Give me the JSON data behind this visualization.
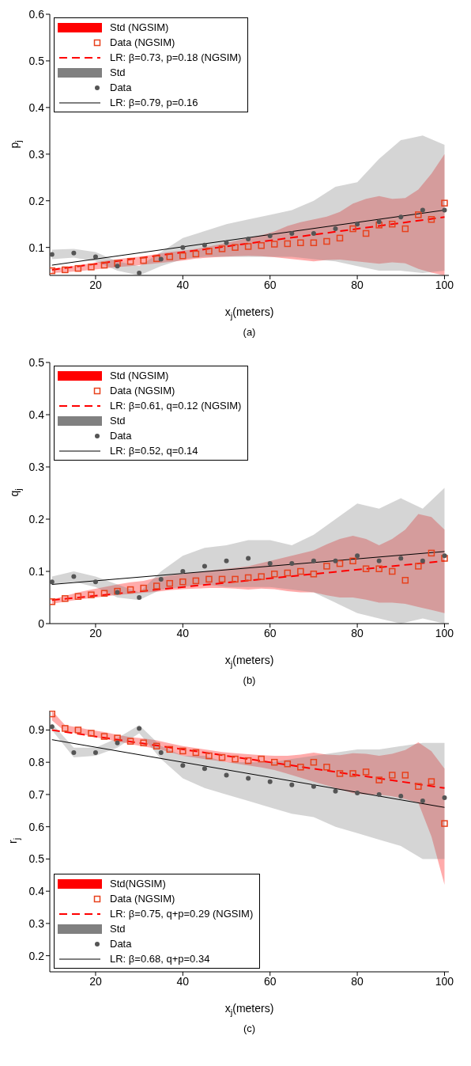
{
  "chart_data": [
    {
      "type": "scatter",
      "xlabel": "x$_{j}$(meters)",
      "ylabel": "p$_{j}$",
      "annotations": [
        "(a)"
      ],
      "xlim": [
        9.5,
        101
      ],
      "ylim": [
        0.04,
        0.6
      ],
      "xticks": [
        20,
        40,
        60,
        80,
        100
      ],
      "yticks": [
        0.1,
        0.2,
        0.3,
        0.4,
        0.5,
        0.6
      ],
      "legend": "top left",
      "series": [
        {
          "type": "area",
          "name": "Std (NGSIM)",
          "color": "#ff0000"
        },
        {
          "type": "scatter",
          "name": "Data (NGSIM)",
          "color": "#e8411c",
          "marker": "square",
          "x": [
            10,
            13,
            16,
            19,
            22,
            25,
            28,
            31,
            34,
            37,
            40,
            43,
            46,
            49,
            52,
            55,
            58,
            61,
            64,
            67,
            70,
            73,
            76,
            79,
            82,
            85,
            88,
            91,
            94,
            97,
            100
          ],
          "values": [
            0.05,
            0.052,
            0.055,
            0.058,
            0.062,
            0.066,
            0.07,
            0.072,
            0.076,
            0.08,
            0.082,
            0.086,
            0.092,
            0.097,
            0.1,
            0.102,
            0.104,
            0.107,
            0.108,
            0.11,
            0.11,
            0.113,
            0.12,
            0.14,
            0.13,
            0.148,
            0.15,
            0.14,
            0.17,
            0.16,
            0.195
          ],
          "lower": [
            0.045,
            0.047,
            0.049,
            0.052,
            0.055,
            0.058,
            0.06,
            0.063,
            0.066,
            0.069,
            0.072,
            0.076,
            0.078,
            0.08,
            0.081,
            0.082,
            0.081,
            0.079,
            0.076,
            0.073,
            0.07,
            0.073,
            0.074,
            0.071,
            0.068,
            0.065,
            0.068,
            0.066,
            0.054,
            0.046,
            0.04
          ],
          "upper": [
            0.055,
            0.058,
            0.062,
            0.066,
            0.071,
            0.075,
            0.078,
            0.081,
            0.086,
            0.09,
            0.093,
            0.097,
            0.102,
            0.108,
            0.114,
            0.12,
            0.126,
            0.134,
            0.146,
            0.154,
            0.16,
            0.166,
            0.176,
            0.194,
            0.204,
            0.21,
            0.204,
            0.206,
            0.224,
            0.258,
            0.3
          ]
        },
        {
          "type": "line",
          "name": "LR: β=0.73, p=0.18 (NGSIM)",
          "color": "#ff0000",
          "line_style": "dashed",
          "x": [
            10,
            100
          ],
          "values": [
            0.052,
            0.165
          ]
        },
        {
          "type": "area",
          "name": "Std",
          "color": "#808080"
        },
        {
          "type": "scatter",
          "name": "Data",
          "color": "#555555",
          "marker": "circle",
          "x": [
            10,
            15,
            20,
            25,
            30,
            35,
            40,
            45,
            50,
            55,
            60,
            65,
            70,
            75,
            80,
            85,
            90,
            95,
            100
          ],
          "values": [
            0.085,
            0.088,
            0.08,
            0.06,
            0.045,
            0.075,
            0.1,
            0.105,
            0.11,
            0.118,
            0.125,
            0.13,
            0.13,
            0.14,
            0.15,
            0.155,
            0.165,
            0.18,
            0.18
          ],
          "lower": [
            0.075,
            0.078,
            0.07,
            0.05,
            0.04,
            0.06,
            0.075,
            0.08,
            0.08,
            0.08,
            0.08,
            0.08,
            0.075,
            0.07,
            0.06,
            0.05,
            0.05,
            0.045,
            0.05
          ],
          "upper": [
            0.095,
            0.097,
            0.09,
            0.07,
            0.06,
            0.09,
            0.12,
            0.135,
            0.15,
            0.16,
            0.17,
            0.18,
            0.2,
            0.23,
            0.24,
            0.29,
            0.33,
            0.34,
            0.32
          ]
        },
        {
          "type": "line",
          "name": "LR: β=0.79, p=0.16",
          "color": "#000000",
          "line_style": "solid",
          "x": [
            10,
            100
          ],
          "values": [
            0.062,
            0.18
          ]
        }
      ]
    },
    {
      "type": "scatter",
      "xlabel": "x$_{j}$(meters)",
      "ylabel": "q$_{j}$",
      "annotations": [
        "(b)"
      ],
      "xlim": [
        9.5,
        101
      ],
      "ylim": [
        0,
        0.5
      ],
      "xticks": [
        20,
        40,
        60,
        80,
        100
      ],
      "yticks": [
        0,
        0.1,
        0.2,
        0.3,
        0.4,
        0.5
      ],
      "legend": "top left",
      "series": [
        {
          "type": "area",
          "name": "Std (NGSIM)",
          "color": "#ff0000"
        },
        {
          "type": "scatter",
          "name": "Data (NGSIM)",
          "color": "#e8411c",
          "marker": "square",
          "x": [
            10,
            13,
            16,
            19,
            22,
            25,
            28,
            31,
            34,
            37,
            40,
            43,
            46,
            49,
            52,
            55,
            58,
            61,
            64,
            67,
            70,
            73,
            76,
            79,
            82,
            85,
            88,
            91,
            94,
            97,
            100
          ],
          "values": [
            0.042,
            0.048,
            0.052,
            0.055,
            0.058,
            0.062,
            0.065,
            0.068,
            0.072,
            0.077,
            0.08,
            0.082,
            0.085,
            0.085,
            0.085,
            0.088,
            0.09,
            0.095,
            0.097,
            0.1,
            0.095,
            0.11,
            0.115,
            0.12,
            0.105,
            0.105,
            0.1,
            0.083,
            0.11,
            0.135,
            0.125
          ],
          "lower": [
            0.038,
            0.042,
            0.046,
            0.049,
            0.052,
            0.055,
            0.057,
            0.059,
            0.061,
            0.064,
            0.066,
            0.067,
            0.068,
            0.068,
            0.067,
            0.065,
            0.067,
            0.066,
            0.062,
            0.06,
            0.06,
            0.054,
            0.05,
            0.05,
            0.046,
            0.04,
            0.04,
            0.038,
            0.032,
            0.026,
            0.02
          ],
          "upper": [
            0.046,
            0.053,
            0.06,
            0.065,
            0.07,
            0.075,
            0.079,
            0.082,
            0.088,
            0.092,
            0.095,
            0.098,
            0.101,
            0.104,
            0.107,
            0.11,
            0.116,
            0.122,
            0.128,
            0.134,
            0.14,
            0.152,
            0.162,
            0.168,
            0.162,
            0.15,
            0.162,
            0.18,
            0.21,
            0.204,
            0.18
          ]
        },
        {
          "type": "line",
          "name": "LR: β=0.61, q=0.12 (NGSIM)",
          "color": "#ff0000",
          "line_style": "dashed",
          "x": [
            10,
            100
          ],
          "values": [
            0.045,
            0.12
          ]
        },
        {
          "type": "area",
          "name": "Std",
          "color": "#808080"
        },
        {
          "type": "scatter",
          "name": "Data",
          "color": "#555555",
          "marker": "circle",
          "x": [
            10,
            15,
            20,
            25,
            30,
            35,
            40,
            45,
            50,
            55,
            60,
            65,
            70,
            75,
            80,
            85,
            90,
            95,
            100
          ],
          "values": [
            0.08,
            0.09,
            0.08,
            0.06,
            0.05,
            0.085,
            0.1,
            0.11,
            0.12,
            0.125,
            0.115,
            0.115,
            0.12,
            0.12,
            0.13,
            0.12,
            0.125,
            0.12,
            0.13
          ],
          "lower": [
            0.075,
            0.08,
            0.07,
            0.05,
            0.045,
            0.065,
            0.07,
            0.075,
            0.07,
            0.07,
            0.07,
            0.065,
            0.06,
            0.04,
            0.02,
            0.01,
            0,
            0.01,
            0
          ],
          "upper": [
            0.09,
            0.1,
            0.09,
            0.075,
            0.06,
            0.1,
            0.13,
            0.145,
            0.15,
            0.16,
            0.16,
            0.15,
            0.17,
            0.2,
            0.23,
            0.22,
            0.24,
            0.22,
            0.26
          ]
        },
        {
          "type": "line",
          "name": "LR: β=0.52, q=0.14",
          "color": "#000000",
          "line_style": "solid",
          "x": [
            10,
            100
          ],
          "values": [
            0.075,
            0.138
          ]
        }
      ]
    },
    {
      "type": "scatter",
      "xlabel": "x$_{j}$(meters)",
      "ylabel": "r$_{j}$",
      "annotations": [
        "(c)"
      ],
      "xlim": [
        9.5,
        101
      ],
      "ylim": [
        0.15,
        0.96
      ],
      "xticks": [
        20,
        40,
        60,
        80,
        100
      ],
      "yticks": [
        0.2,
        0.3,
        0.4,
        0.5,
        0.6,
        0.7,
        0.8,
        0.9
      ],
      "legend": "bottom left",
      "series": [
        {
          "type": "area",
          "name": "Std(NGSIM)",
          "color": "#ff0000"
        },
        {
          "type": "scatter",
          "name": "Data (NGSIM)",
          "color": "#e8411c",
          "marker": "square",
          "x": [
            10,
            13,
            16,
            19,
            22,
            25,
            28,
            31,
            34,
            37,
            40,
            43,
            46,
            49,
            52,
            55,
            58,
            61,
            64,
            67,
            70,
            73,
            76,
            79,
            82,
            85,
            88,
            91,
            94,
            97,
            100
          ],
          "values": [
            0.95,
            0.905,
            0.9,
            0.89,
            0.88,
            0.875,
            0.865,
            0.86,
            0.85,
            0.84,
            0.835,
            0.83,
            0.82,
            0.815,
            0.81,
            0.805,
            0.81,
            0.8,
            0.795,
            0.785,
            0.8,
            0.785,
            0.765,
            0.765,
            0.77,
            0.745,
            0.76,
            0.76,
            0.725,
            0.74,
            0.61
          ],
          "lower": [
            0.93,
            0.895,
            0.89,
            0.88,
            0.872,
            0.865,
            0.856,
            0.849,
            0.842,
            0.832,
            0.82,
            0.814,
            0.808,
            0.802,
            0.796,
            0.79,
            0.784,
            0.776,
            0.764,
            0.752,
            0.74,
            0.728,
            0.716,
            0.704,
            0.7,
            0.7,
            0.694,
            0.686,
            0.674,
            0.57,
            0.42
          ],
          "upper": [
            0.96,
            0.915,
            0.908,
            0.9,
            0.894,
            0.885,
            0.878,
            0.874,
            0.868,
            0.859,
            0.85,
            0.844,
            0.838,
            0.832,
            0.828,
            0.825,
            0.822,
            0.82,
            0.82,
            0.824,
            0.83,
            0.824,
            0.822,
            0.828,
            0.826,
            0.82,
            0.826,
            0.838,
            0.862,
            0.834,
            0.78
          ]
        },
        {
          "type": "line",
          "name": "LR: β=0.75, q+p=0.29 (NGSIM)",
          "color": "#ff0000",
          "line_style": "dashed",
          "x": [
            10,
            100
          ],
          "values": [
            0.9,
            0.72
          ]
        },
        {
          "type": "area",
          "name": "Std",
          "color": "#808080"
        },
        {
          "type": "scatter",
          "name": "Data",
          "color": "#555555",
          "marker": "circle",
          "x": [
            10,
            15,
            20,
            25,
            30,
            35,
            40,
            45,
            50,
            55,
            60,
            65,
            70,
            75,
            80,
            85,
            90,
            95,
            100
          ],
          "values": [
            0.91,
            0.83,
            0.83,
            0.86,
            0.905,
            0.83,
            0.79,
            0.78,
            0.76,
            0.75,
            0.74,
            0.73,
            0.725,
            0.71,
            0.705,
            0.7,
            0.695,
            0.68,
            0.69
          ],
          "lower": [
            0.9,
            0.815,
            0.82,
            0.845,
            0.89,
            0.81,
            0.75,
            0.72,
            0.7,
            0.68,
            0.66,
            0.64,
            0.63,
            0.6,
            0.58,
            0.56,
            0.54,
            0.5,
            0.5
          ],
          "upper": [
            0.92,
            0.845,
            0.845,
            0.875,
            0.915,
            0.85,
            0.82,
            0.82,
            0.8,
            0.8,
            0.8,
            0.81,
            0.82,
            0.83,
            0.84,
            0.84,
            0.85,
            0.86,
            0.86
          ]
        },
        {
          "type": "line",
          "name": "LR: β=0.68, q+p=0.34",
          "color": "#000000",
          "line_style": "solid",
          "x": [
            10,
            100
          ],
          "values": [
            0.87,
            0.66
          ]
        }
      ]
    }
  ]
}
